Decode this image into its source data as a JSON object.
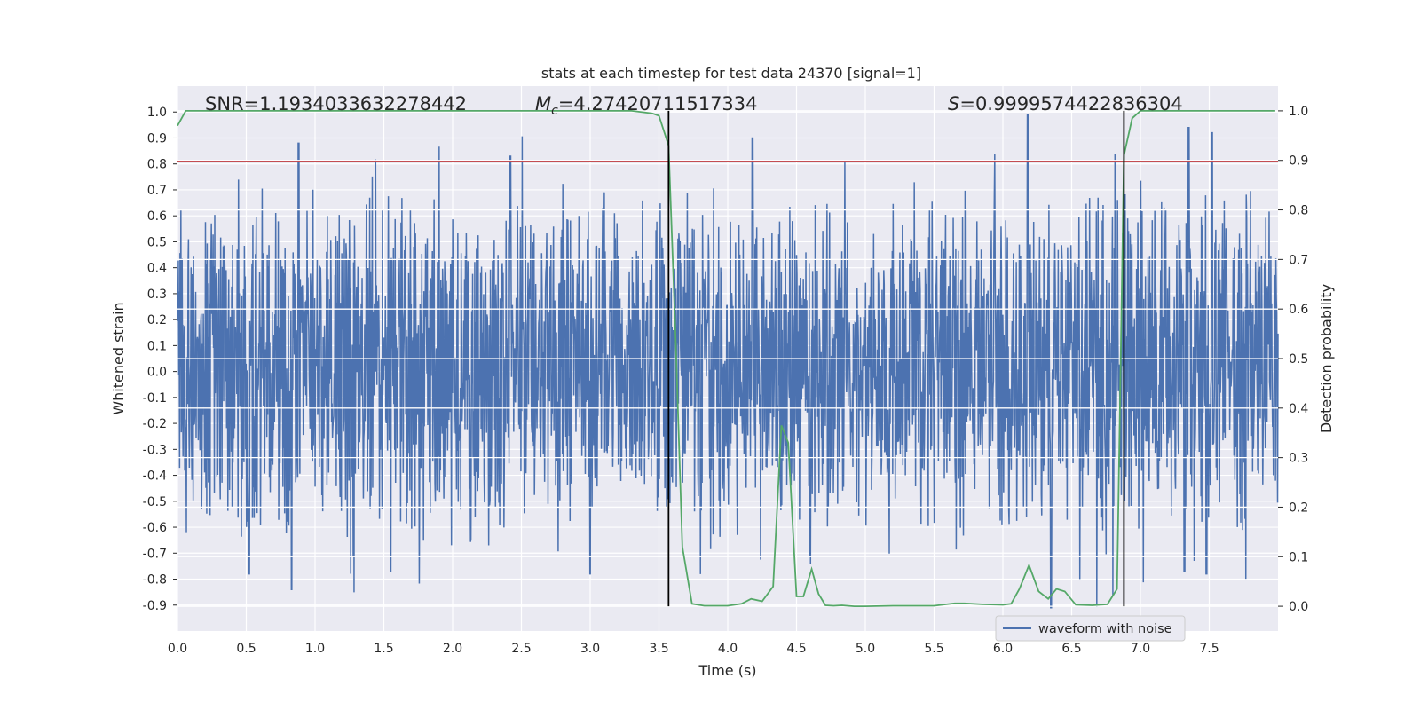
{
  "chart_data": {
    "type": "line",
    "title": "stats at each timestep for test data 24370 [signal=1]",
    "xlabel": "Time (s)",
    "ylabel": "Whitened strain",
    "y2label": "Detection probability",
    "xlim": [
      0.0,
      8.0
    ],
    "ylim": [
      -1.0,
      1.1
    ],
    "y2lim": [
      -0.05,
      1.05
    ],
    "x_ticks": [
      "0.0",
      "0.5",
      "1.0",
      "1.5",
      "2.0",
      "2.5",
      "3.0",
      "3.5",
      "4.0",
      "4.5",
      "5.0",
      "5.5",
      "6.0",
      "6.5",
      "7.0",
      "7.5"
    ],
    "y_ticks": [
      "-0.9",
      "-0.8",
      "-0.7",
      "-0.6",
      "-0.5",
      "-0.4",
      "-0.3",
      "-0.2",
      "-0.1",
      "0.0",
      "0.1",
      "0.2",
      "0.3",
      "0.4",
      "0.5",
      "0.6",
      "0.7",
      "0.8",
      "0.9",
      "1.0"
    ],
    "y2_ticks": [
      "0.0",
      "0.1",
      "0.2",
      "0.3",
      "0.4",
      "0.5",
      "0.6",
      "0.7",
      "0.8",
      "0.9",
      "1.0"
    ],
    "grid": true,
    "legend": {
      "position": "lower-right",
      "entries": [
        "waveform with noise"
      ]
    },
    "annotations": [
      {
        "text_plain": "SNR=1.1934033632278442",
        "x": 0.2
      },
      {
        "var": "M",
        "sub": "c",
        "value": "=4.27420711517334",
        "x": 2.6
      },
      {
        "var": "S",
        "value": "=0.9999574422836304",
        "x": 5.6
      }
    ],
    "threshold": {
      "value": 0.81,
      "color": "#c44e52"
    },
    "detection_boundaries": [
      3.57,
      6.88
    ],
    "waveform": {
      "name": "waveform with noise",
      "color": "#4c72b0",
      "x_range": [
        0.0,
        8.0
      ],
      "typical_envelope": [
        -0.45,
        0.5
      ],
      "peaks_up": [
        [
          0.88,
          0.88
        ],
        [
          2.42,
          0.83
        ],
        [
          4.18,
          0.9
        ],
        [
          6.18,
          0.99
        ],
        [
          7.35,
          0.94
        ],
        [
          7.52,
          0.92
        ],
        [
          3.65,
          0.5
        ]
      ],
      "peaks_down": [
        [
          0.83,
          -0.84
        ],
        [
          0.52,
          -0.78
        ],
        [
          1.55,
          -0.77
        ],
        [
          3.0,
          -0.78
        ],
        [
          6.35,
          -0.91
        ],
        [
          7.32,
          -0.77
        ],
        [
          7.48,
          -0.78
        ]
      ]
    },
    "probability": {
      "name": "Detection probability",
      "color": "#55a868",
      "x": [
        0.0,
        0.06,
        0.12,
        0.5,
        1.0,
        2.0,
        3.0,
        3.3,
        3.45,
        3.5,
        3.57,
        3.62,
        3.67,
        3.74,
        3.83,
        4.0,
        4.1,
        4.17,
        4.25,
        4.33,
        4.39,
        4.44,
        4.5,
        4.55,
        4.61,
        4.66,
        4.71,
        4.77,
        4.83,
        4.92,
        5.0,
        5.2,
        5.5,
        5.65,
        5.72,
        5.85,
        6.0,
        6.06,
        6.12,
        6.19,
        6.26,
        6.33,
        6.39,
        6.45,
        6.53,
        6.65,
        6.76,
        6.83,
        6.88,
        6.94,
        7.0,
        7.2,
        7.6,
        7.98
      ],
      "values": [
        0.97,
        1.0,
        1.0,
        1.0,
        1.0,
        1.0,
        1.0,
        1.0,
        0.995,
        0.99,
        0.93,
        0.55,
        0.12,
        0.005,
        0.001,
        0.001,
        0.005,
        0.015,
        0.01,
        0.04,
        0.365,
        0.33,
        0.02,
        0.02,
        0.075,
        0.025,
        0.002,
        0.001,
        0.002,
        0.0,
        0.0,
        0.001,
        0.001,
        0.006,
        0.006,
        0.004,
        0.003,
        0.005,
        0.035,
        0.083,
        0.03,
        0.015,
        0.035,
        0.03,
        0.003,
        0.002,
        0.004,
        0.035,
        0.91,
        0.985,
        1.0,
        1.0,
        1.0,
        1.0
      ]
    }
  }
}
